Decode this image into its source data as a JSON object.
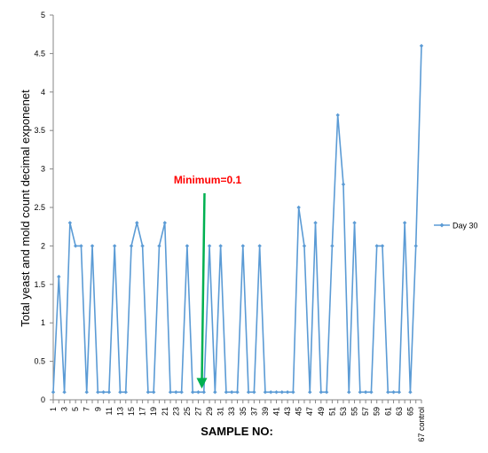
{
  "chart_data": {
    "type": "line",
    "title": "",
    "xlabel": "SAMPLE NO:",
    "ylabel": "Total yeast and mold count decimal exponenet",
    "ylim": [
      0,
      5
    ],
    "yticks": [
      0,
      0.5,
      1,
      1.5,
      2,
      2.5,
      3,
      3.5,
      4,
      4.5,
      5
    ],
    "grid": false,
    "legend_position": "right",
    "categories": [
      "1",
      "2",
      "3",
      "4",
      "5",
      "6",
      "7",
      "8",
      "9",
      "10",
      "11",
      "12",
      "13",
      "14",
      "15",
      "16",
      "17",
      "18",
      "19",
      "20",
      "21",
      "22",
      "23",
      "24",
      "25",
      "26",
      "27",
      "28",
      "29",
      "30",
      "31",
      "32",
      "33",
      "34",
      "35",
      "36",
      "37",
      "38",
      "39",
      "40",
      "41",
      "42",
      "43",
      "44",
      "45",
      "46",
      "47",
      "48",
      "49",
      "50",
      "51",
      "52",
      "53",
      "54",
      "55",
      "56",
      "57",
      "58",
      "59",
      "60",
      "61",
      "62",
      "63",
      "64",
      "65",
      "66",
      "67 control"
    ],
    "tick_labels": [
      "1",
      "3",
      "5",
      "7",
      "9",
      "11",
      "13",
      "15",
      "17",
      "19",
      "21",
      "23",
      "25",
      "27",
      "29",
      "31",
      "33",
      "35",
      "37",
      "39",
      "41",
      "43",
      "45",
      "47",
      "49",
      "51",
      "53",
      "55",
      "57",
      "59",
      "61",
      "63",
      "65",
      "67 control"
    ],
    "series": [
      {
        "name": "Day 30",
        "color": "#5b9bd5",
        "values": [
          0.1,
          1.6,
          0.1,
          2.3,
          2.0,
          2.0,
          0.1,
          2.0,
          0.1,
          0.1,
          0.1,
          2.0,
          0.1,
          0.1,
          2.0,
          2.3,
          2.0,
          0.1,
          0.1,
          2.0,
          2.3,
          0.1,
          0.1,
          0.1,
          2.0,
          0.1,
          0.1,
          0.1,
          2.0,
          0.1,
          2.0,
          0.1,
          0.1,
          0.1,
          2.0,
          0.1,
          0.1,
          2.0,
          0.1,
          0.1,
          0.1,
          0.1,
          0.1,
          0.1,
          2.5,
          2.0,
          0.1,
          2.3,
          0.1,
          0.1,
          2.0,
          3.7,
          2.8,
          0.1,
          2.3,
          0.1,
          0.1,
          0.1,
          2.0,
          2.0,
          0.1,
          0.1,
          0.1,
          2.3,
          0.1,
          2.0,
          4.6
        ]
      }
    ],
    "annotation": {
      "text": "Minimum=0.1",
      "text_color": "#ff0000",
      "arrow_color": "#00b050",
      "target_category": "27",
      "target_value": 0.1
    }
  }
}
